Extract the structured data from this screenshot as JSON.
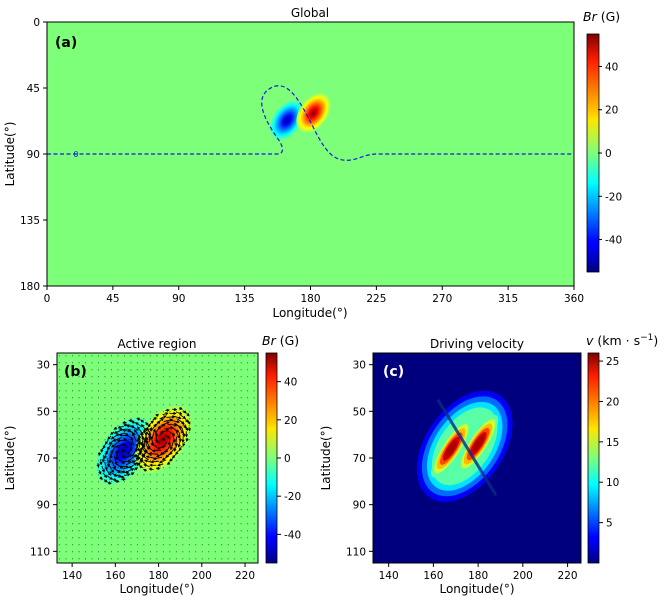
{
  "chart_data": [
    {
      "id": "a",
      "type": "heatmap",
      "panel_label": "(a)",
      "title": "Global",
      "xlabel": "Longitude(°)",
      "ylabel": "Latitude(°)",
      "xlim": [
        0,
        360
      ],
      "ylim": [
        0,
        180
      ],
      "y_inverted": true,
      "xticks": [
        0,
        45,
        90,
        135,
        180,
        225,
        270,
        315,
        360
      ],
      "yticks": [
        0,
        45,
        90,
        135,
        180
      ],
      "background_value": 0,
      "sources": [
        {
          "polarity": "negative",
          "lon": 164,
          "lat": 67,
          "peak": -52
        },
        {
          "polarity": "positive",
          "lon": 182,
          "lat": 62,
          "peak": 54
        }
      ],
      "contour": {
        "level_label": "0",
        "style": "dashed",
        "color": "#1a1adc"
      },
      "colorbar": {
        "label_var": "Br",
        "label_unit": " (G)",
        "range": [
          -55,
          55
        ],
        "ticks": [
          40,
          20,
          0,
          -20,
          -40
        ]
      }
    },
    {
      "id": "b",
      "type": "heatmap",
      "panel_label": "(b)",
      "title": "Active region",
      "xlabel": "Longitude(°)",
      "ylabel": "Latitude(°)",
      "xlim": [
        133,
        226
      ],
      "ylim": [
        25,
        115
      ],
      "y_inverted": true,
      "xticks": [
        140,
        160,
        180,
        200,
        220
      ],
      "yticks": [
        30,
        50,
        70,
        90,
        110
      ],
      "overlay": "velocity vectors (black arrows)",
      "colorbar": {
        "label_var": "Br",
        "label_unit": " (G)",
        "range": [
          -55,
          55
        ],
        "ticks": [
          40,
          20,
          0,
          -20,
          -40
        ]
      }
    },
    {
      "id": "c",
      "type": "heatmap",
      "panel_label": "(c)",
      "title": "Driving velocity",
      "xlabel": "Longitude(°)",
      "ylabel": "Latitude(°)",
      "xlim": [
        133,
        226
      ],
      "ylim": [
        25,
        115
      ],
      "y_inverted": true,
      "xticks": [
        140,
        160,
        180,
        200,
        220
      ],
      "yticks": [
        30,
        50,
        70,
        90,
        110
      ],
      "velocity_peaks": [
        {
          "lon": 168,
          "lat": 66,
          "v": 25
        },
        {
          "lon": 180,
          "lat": 64,
          "v": 25
        }
      ],
      "colorbar": {
        "label_var": "v",
        "label_unit": " (km · s",
        "label_exp": "−1",
        "label_close": ")",
        "range": [
          0,
          26
        ],
        "ticks": [
          25,
          20,
          15,
          10,
          5
        ]
      }
    }
  ]
}
